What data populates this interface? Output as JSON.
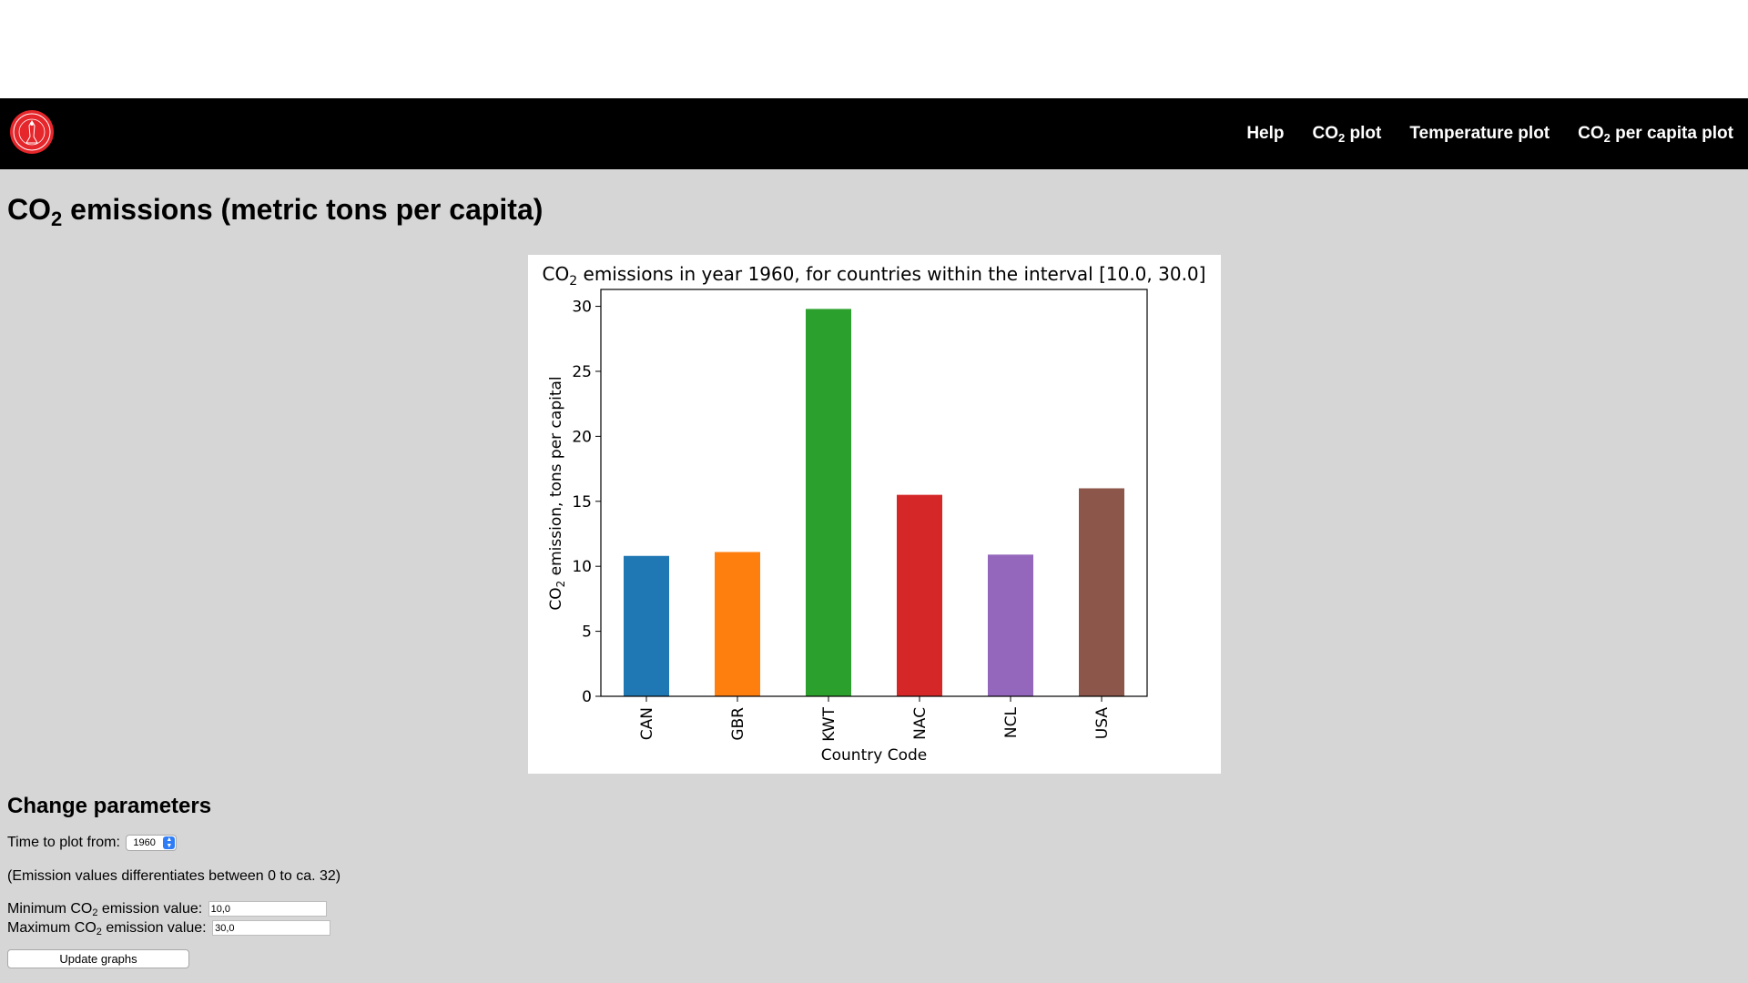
{
  "nav": {
    "items": [
      {
        "label": "Help"
      },
      {
        "label_main": "CO",
        "label_sub": "2",
        "label_rest": " plot"
      },
      {
        "label": "Temperature plot"
      },
      {
        "label_main": "CO",
        "label_sub": "2",
        "label_rest": " per capita plot"
      }
    ],
    "logo_icon": "university-seal-icon"
  },
  "page": {
    "title_main": "CO",
    "title_sub": "2",
    "title_rest": " emissions (metric tons per capita)"
  },
  "chart_data": {
    "type": "bar",
    "title_main": "CO",
    "title_sub": "2",
    "title_rest": " emissions in year 1960, for countries within the interval [10.0, 30.0]",
    "xlabel": "Country Code",
    "ylabel_main": "CO",
    "ylabel_sub": "2",
    "ylabel_rest": " emission, tons per capital",
    "categories": [
      "CAN",
      "GBR",
      "KWT",
      "NAC",
      "NCL",
      "USA"
    ],
    "values": [
      10.8,
      11.1,
      29.8,
      15.5,
      10.9,
      16.0
    ],
    "colors": [
      "#1f77b4",
      "#ff7f0e",
      "#2ca02c",
      "#d62728",
      "#9467bd",
      "#8c564b"
    ],
    "yticks": [
      0,
      5,
      10,
      15,
      20,
      25,
      30
    ],
    "ylim": [
      0,
      31.3
    ],
    "grid": false,
    "legend": false
  },
  "params": {
    "heading": "Change parameters",
    "time_label": "Time to plot from:",
    "time_value": "1960",
    "note": "(Emission values differentiates between 0 to ca. 32)",
    "min_label_main": "Minimum CO",
    "min_label_sub": "2",
    "min_label_rest": " emission value:",
    "min_value": "10,0",
    "max_label_main": "Maximum CO",
    "max_label_sub": "2",
    "max_label_rest": " emission value:",
    "max_value": "30,0",
    "update_label": "Update graphs"
  }
}
